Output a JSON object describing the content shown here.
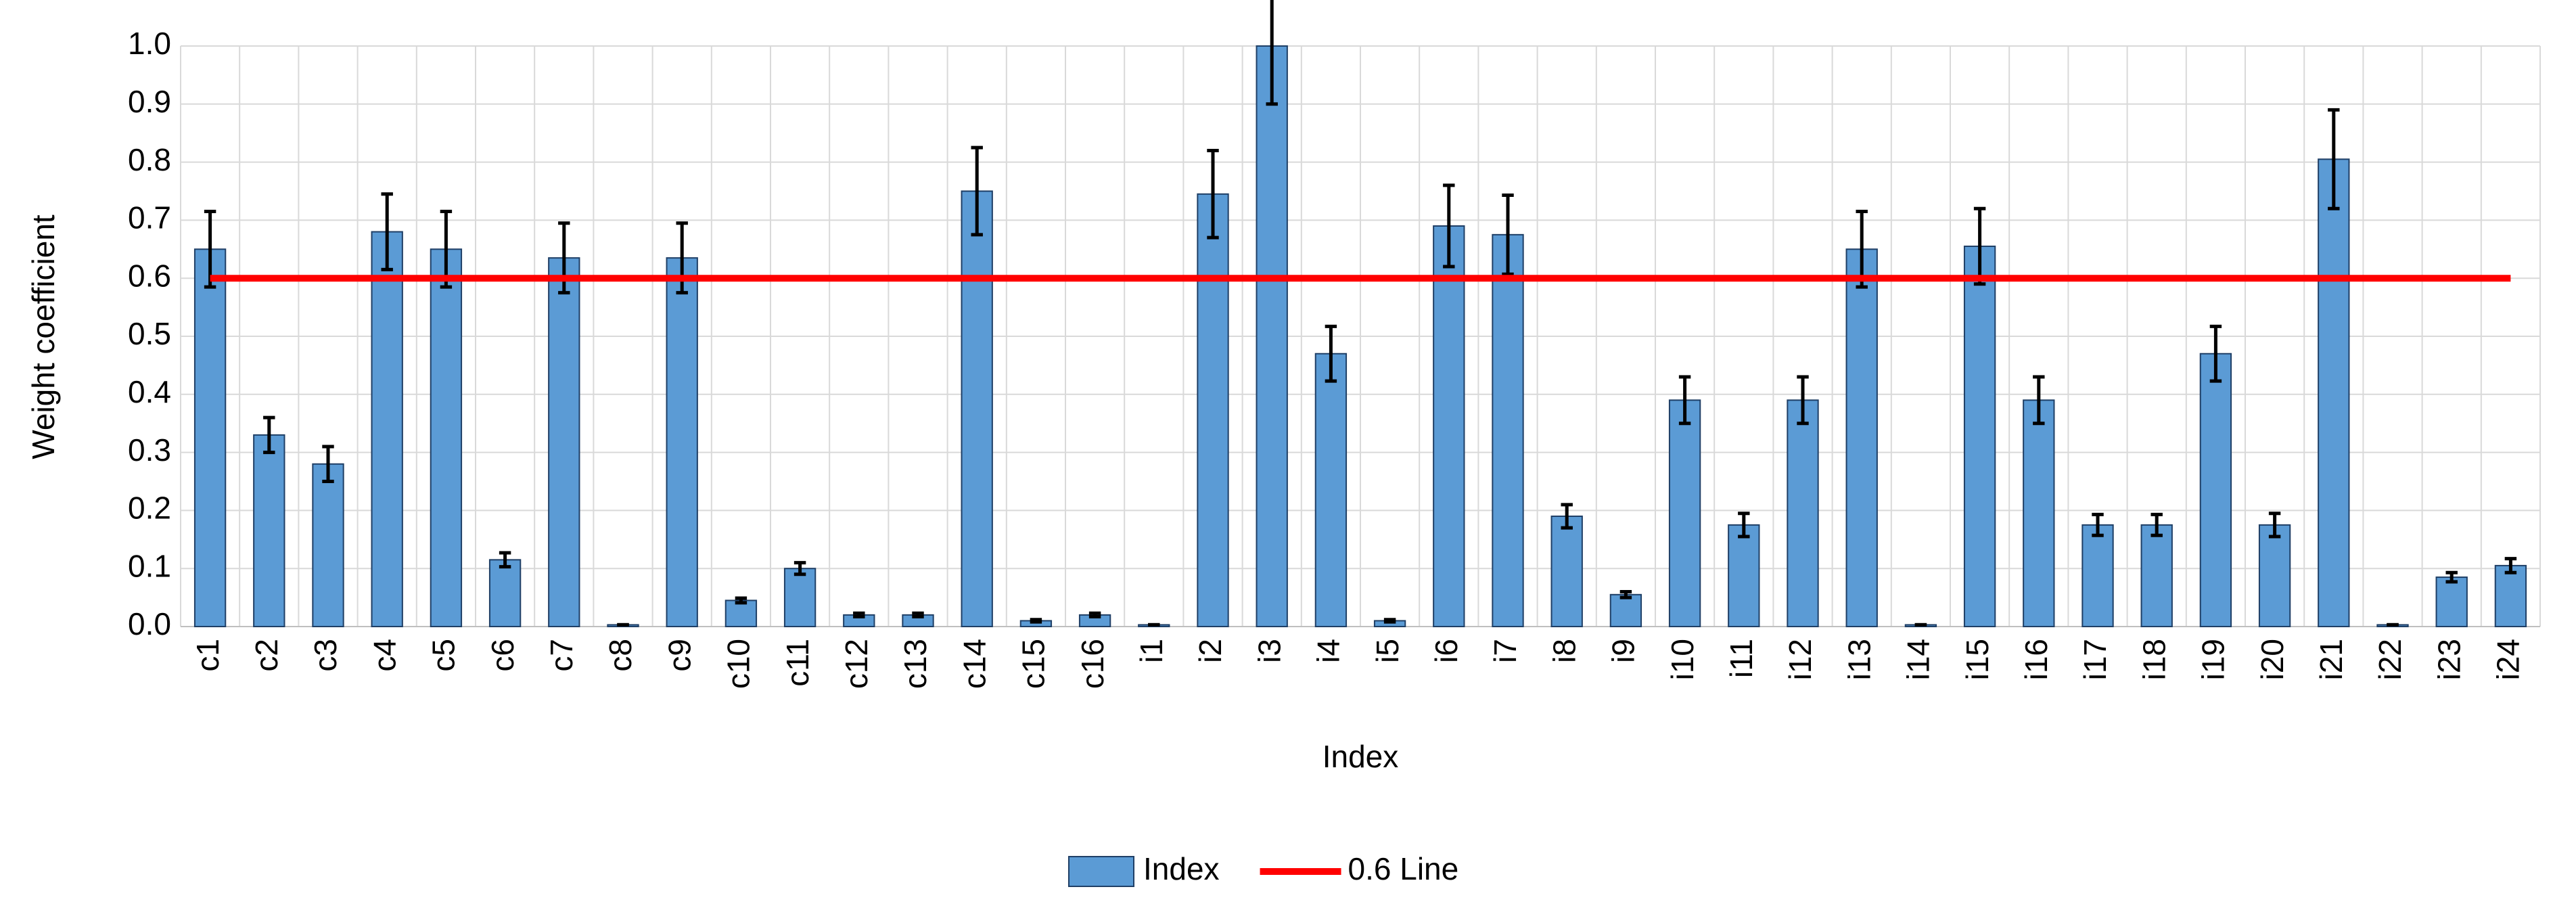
{
  "chart_data": {
    "type": "bar",
    "x_label": "Index",
    "y_label": "Weight coefficient",
    "categories": [
      "c1",
      "c2",
      "c3",
      "c4",
      "c5",
      "c6",
      "c7",
      "c8",
      "c9",
      "c10",
      "c11",
      "c12",
      "c13",
      "c14",
      "c15",
      "c16",
      "i1",
      "i2",
      "i3",
      "i4",
      "i5",
      "i6",
      "i7",
      "i8",
      "i9",
      "i10",
      "i11",
      "i12",
      "i13",
      "i14",
      "i15",
      "i16",
      "i17",
      "i18",
      "i19",
      "i20",
      "i21",
      "i22",
      "i23",
      "i24"
    ],
    "series": [
      {
        "name": "Index",
        "type": "bar",
        "color": "#5b9bd5",
        "values": [
          0.65,
          0.33,
          0.28,
          0.68,
          0.65,
          0.115,
          0.635,
          0.003,
          0.635,
          0.045,
          0.1,
          0.02,
          0.02,
          0.75,
          0.01,
          0.02,
          0.003,
          0.745,
          1.0,
          0.47,
          0.01,
          0.69,
          0.675,
          0.19,
          0.055,
          0.39,
          0.175,
          0.39,
          0.65,
          0.003,
          0.655,
          0.39,
          0.175,
          0.175,
          0.47,
          0.175,
          0.805,
          0.003,
          0.085,
          0.105
        ],
        "errors": [
          0.065,
          0.03,
          0.03,
          0.065,
          0.065,
          0.012,
          0.06,
          0,
          0.06,
          0.004,
          0.01,
          0.003,
          0.003,
          0.075,
          0.002,
          0.003,
          0,
          0.075,
          0.1,
          0.047,
          0.002,
          0.07,
          0.068,
          0.02,
          0.005,
          0.04,
          0.02,
          0.04,
          0.065,
          0,
          0.065,
          0.04,
          0.018,
          0.018,
          0.047,
          0.02,
          0.085,
          0,
          0.008,
          0.012
        ]
      },
      {
        "name": "0.6 Line",
        "type": "line",
        "color": "#ff0000",
        "values": [
          0.6,
          0.6,
          0.6,
          0.6,
          0.6,
          0.6,
          0.6,
          0.6,
          0.6,
          0.6,
          0.6,
          0.6,
          0.6,
          0.6,
          0.6,
          0.6,
          0.6,
          0.6,
          0.6,
          0.6,
          0.6,
          0.6,
          0.6,
          0.6,
          0.6,
          0.6,
          0.6,
          0.6,
          0.6,
          0.6,
          0.6,
          0.6,
          0.6,
          0.6,
          0.6,
          0.6,
          0.6,
          0.6,
          0.6,
          0.6
        ]
      }
    ],
    "ylim": [
      0,
      1
    ],
    "yticks": [
      {
        "value": 0,
        "label": "0.0"
      },
      0.1,
      0.2,
      0.3,
      0.4,
      0.5,
      0.6,
      0.7,
      0.8,
      0.9,
      {
        "value": 1,
        "label": "1.0"
      }
    ],
    "grid": true,
    "legend": "bottom"
  }
}
